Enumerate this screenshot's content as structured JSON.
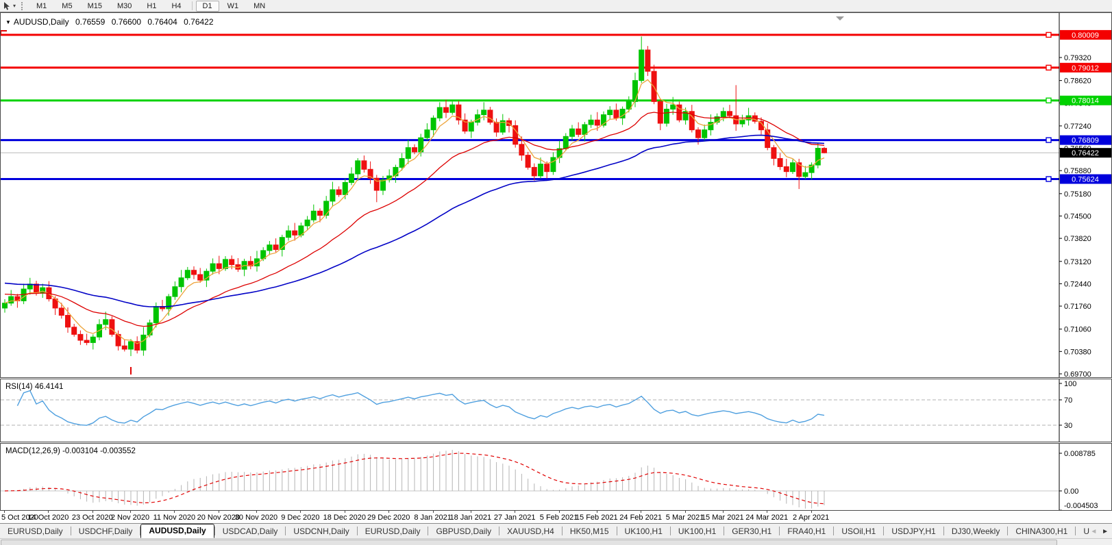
{
  "toolbar": {
    "timeframes": [
      "M1",
      "M5",
      "M15",
      "M30",
      "H1",
      "H4",
      "D1",
      "W1",
      "MN"
    ],
    "active_timeframe": "D1",
    "cursor_tool_caret": "▾"
  },
  "chart": {
    "title": "AUDUSD,Daily",
    "dropdown_glyph": "▼",
    "ohlc_display": {
      "open": "0.76559",
      "high": "0.76600",
      "low": "0.76404",
      "close": "0.76422"
    },
    "price_axis_ticks": [
      "0.79320",
      "0.78620",
      "0.77940",
      "0.77240",
      "0.76560",
      "0.75880",
      "0.75180",
      "0.74500",
      "0.73820",
      "0.73120",
      "0.72440",
      "0.71760",
      "0.71060",
      "0.70380",
      "0.69700"
    ],
    "levels": [
      {
        "value": 0.80009,
        "label": "0.80009",
        "color": "#f40000"
      },
      {
        "value": 0.79012,
        "label": "0.79012",
        "color": "#f40000"
      },
      {
        "value": 0.78014,
        "label": "0.78014",
        "color": "#00d200"
      },
      {
        "value": 0.76809,
        "label": "0.76809",
        "color": "#0000dc"
      },
      {
        "value": 0.75624,
        "label": "0.75624",
        "color": "#0000dc"
      }
    ],
    "current_price": {
      "value": 0.76422,
      "label": "0.76422",
      "badge_color": "#000000",
      "line_color": "#b8b8b8"
    },
    "up_color": "#00c400",
    "down_color": "#ee1010"
  },
  "chart_data": {
    "type": "candlestick",
    "symbol": "AUDUSD",
    "timeframe": "Daily",
    "x_labels": [
      [
        "5 Oct 2020",
        0
      ],
      [
        "14 Oct 2020",
        7
      ],
      [
        "23 Oct 2020",
        14
      ],
      [
        "2 Nov 2020",
        20
      ],
      [
        "11 Nov 2020",
        27
      ],
      [
        "20 Nov 2020",
        34
      ],
      [
        "30 Nov 2020",
        40
      ],
      [
        "9 Dec 2020",
        47
      ],
      [
        "18 Dec 2020",
        54
      ],
      [
        "29 Dec 2020",
        61
      ],
      [
        "8 Jan 2021",
        68
      ],
      [
        "18 Jan 2021",
        74
      ],
      [
        "27 Jan 2021",
        81
      ],
      [
        "5 Feb 2021",
        88
      ],
      [
        "15 Feb 2021",
        94
      ],
      [
        "24 Feb 2021",
        101
      ],
      [
        "5 Mar 2021",
        108
      ],
      [
        "15 Mar 2021",
        114
      ],
      [
        "24 Mar 2021",
        121
      ],
      [
        "2 Apr 2021",
        128
      ]
    ],
    "ylim": [
      0.69637,
      0.80445
    ],
    "closes": [
      0.7185,
      0.7205,
      0.7192,
      0.7228,
      0.7243,
      0.7215,
      0.7232,
      0.7198,
      0.717,
      0.7148,
      0.7112,
      0.709,
      0.7072,
      0.7065,
      0.7082,
      0.712,
      0.7135,
      0.709,
      0.7055,
      0.7045,
      0.7068,
      0.7042,
      0.7088,
      0.7125,
      0.7175,
      0.7168,
      0.7205,
      0.7235,
      0.7262,
      0.7285,
      0.7272,
      0.7255,
      0.7282,
      0.7305,
      0.729,
      0.7318,
      0.7302,
      0.7288,
      0.7312,
      0.7298,
      0.732,
      0.7345,
      0.7362,
      0.7348,
      0.7385,
      0.7405,
      0.7392,
      0.742,
      0.7438,
      0.7465,
      0.7452,
      0.7495,
      0.753,
      0.7515,
      0.7552,
      0.7578,
      0.7618,
      0.7592,
      0.7565,
      0.7528,
      0.756,
      0.7572,
      0.7598,
      0.7625,
      0.7658,
      0.7645,
      0.7688,
      0.7712,
      0.7748,
      0.778,
      0.7765,
      0.7788,
      0.7742,
      0.7708,
      0.7735,
      0.7758,
      0.7772,
      0.7735,
      0.7705,
      0.774,
      0.7725,
      0.7668,
      0.7635,
      0.7598,
      0.7572,
      0.7608,
      0.7585,
      0.7628,
      0.7655,
      0.7692,
      0.7715,
      0.7698,
      0.7728,
      0.7742,
      0.7726,
      0.7758,
      0.7772,
      0.7748,
      0.7775,
      0.7798,
      0.7862,
      0.7955,
      0.789,
      0.7798,
      0.7732,
      0.7775,
      0.7788,
      0.7742,
      0.7768,
      0.7712,
      0.7688,
      0.7712,
      0.7735,
      0.7752,
      0.7768,
      0.7755,
      0.773,
      0.7742,
      0.7755,
      0.7738,
      0.7712,
      0.7658,
      0.7625,
      0.76,
      0.7585,
      0.7612,
      0.757,
      0.7582,
      0.7605,
      0.7656,
      0.76422
    ],
    "first_open": 0.717,
    "wick_up_cycle": [
      0.0012,
      0.002,
      0.0008,
      0.0016,
      0.0024,
      0.001
    ],
    "wick_down_cycle": [
      0.0014,
      0.0008,
      0.0021,
      0.001,
      0.0017,
      0.0007
    ],
    "overrides": {
      "4": {
        "h": 0.7262
      },
      "19": {
        "l": 0.7038
      },
      "21": {
        "l": 0.7032
      },
      "59": {
        "l": 0.7492
      },
      "101": {
        "h": 0.7996
      },
      "116": {
        "h": 0.7848
      },
      "126": {
        "l": 0.7532
      },
      "130": {
        "o": 0.76559,
        "h": 0.766,
        "l": 0.76404
      }
    },
    "moving_averages": [
      {
        "name": "ma-fast",
        "period": 5,
        "seed": 0.7185,
        "color": "#eda43b",
        "width": 1.3
      },
      {
        "name": "ma-mid",
        "period": 21,
        "seed": 0.7215,
        "color": "#dd0000",
        "width": 1.3
      },
      {
        "name": "ma-slow",
        "period": 55,
        "seed": 0.7248,
        "color": "#0202c6",
        "width": 1.6
      }
    ],
    "indicators": {
      "rsi": {
        "label": "RSI(14) 46.4141",
        "period": 14,
        "levels": [
          70,
          30
        ],
        "axis_ticks": [
          "100",
          "70",
          "30"
        ],
        "color": "#4e9fdf"
      },
      "macd": {
        "label": "MACD(12,26,9) -0.003104 -0.003552",
        "fast": 12,
        "slow": 26,
        "signal": 9,
        "axis_ticks": [
          "0.008785",
          "0.00",
          "-0.004503"
        ],
        "hist_color": "#b4b4b4",
        "signal_color": "#e00000"
      }
    }
  },
  "tabs": {
    "items": [
      "EURUSD,Daily",
      "USDCHF,Daily",
      "AUDUSD,Daily",
      "USDCAD,Daily",
      "USDCNH,Daily",
      "EURUSD,Daily",
      "GBPUSD,Daily",
      "XAUUSD,H4",
      "HK50,M15",
      "UK100,H1",
      "UK100,H1",
      "GER30,H1",
      "FRA40,H1",
      "USOil,H1",
      "USDJPY,H1",
      "DJ30,Weekly",
      "CHINA300,H1",
      "U"
    ],
    "active_index": 2,
    "arrow_left": "◄",
    "arrow_right": "►"
  }
}
